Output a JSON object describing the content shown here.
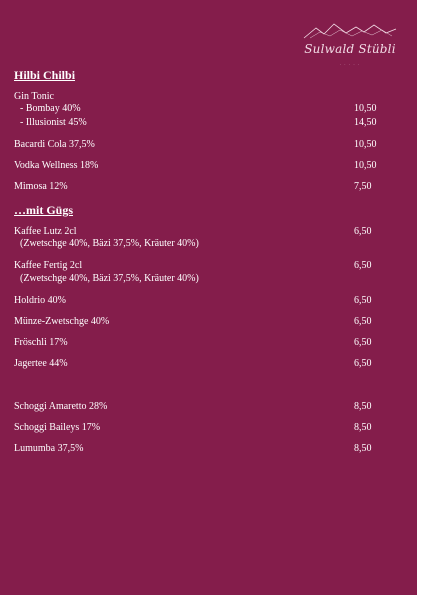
{
  "logo": {
    "name": "Sulwald Stübli",
    "subtitle": "· · · · ·"
  },
  "section1": {
    "heading": "Hilbi Chilbi",
    "gin_tonic": "Gin Tonic",
    "items": [
      {
        "name": "- Bombay 40%",
        "price": "10,50"
      },
      {
        "name": "- Illusionist 45%",
        "price": "14,50"
      },
      {
        "name": "Bacardi Cola 37,5%",
        "price": "10,50"
      },
      {
        "name": "Vodka Wellness 18%",
        "price": "10,50"
      },
      {
        "name": "Mimosa 12%",
        "price": "7,50"
      }
    ]
  },
  "section2": {
    "heading": "…mit Gügs",
    "items": [
      {
        "name": "Kaffee Lutz 2cl",
        "detail": "(Zwetschge 40%, Bäzi 37,5%, Kräuter 40%)",
        "price": "6,50"
      },
      {
        "name": "Kaffee Fertig 2cl",
        "detail": "(Zwetschge 40%, Bäzi 37,5%, Kräuter 40%)",
        "price": "6,50"
      },
      {
        "name": "Holdrio 40%",
        "price": "6,50"
      },
      {
        "name": "Münze-Zwetschge 40%",
        "price": "6,50"
      },
      {
        "name": "Fröschli 17%",
        "price": "6,50"
      },
      {
        "name": "Jagertee 44%",
        "price": "6,50"
      }
    ]
  },
  "section3": {
    "items": [
      {
        "name": "Schoggi Amaretto 28%",
        "price": "8,50"
      },
      {
        "name": "Schoggi Baileys 17%",
        "price": "8,50"
      },
      {
        "name": "Lumumba 37,5%",
        "price": "8,50"
      }
    ]
  },
  "colors": {
    "background": "#841d4b",
    "text": "#ffffff"
  }
}
